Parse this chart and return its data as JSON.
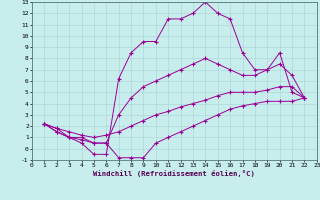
{
  "xlabel": "Windchill (Refroidissement éolien,°C)",
  "xlim": [
    0,
    23
  ],
  "ylim": [
    -1,
    13
  ],
  "xticks": [
    0,
    1,
    2,
    3,
    4,
    5,
    6,
    7,
    8,
    9,
    10,
    11,
    12,
    13,
    14,
    15,
    16,
    17,
    18,
    19,
    20,
    21,
    22,
    23
  ],
  "yticks": [
    -1,
    0,
    1,
    2,
    3,
    4,
    5,
    6,
    7,
    8,
    9,
    10,
    11,
    12,
    13
  ],
  "bg_color": "#c8eded",
  "line_color": "#990099",
  "grid_color": "#aadddd",
  "lines": [
    {
      "x": [
        1,
        2,
        3,
        4,
        5,
        6,
        7,
        8,
        9,
        10,
        11,
        12,
        13,
        14,
        15,
        16,
        17,
        18,
        19,
        20,
        21,
        22
      ],
      "y": [
        2.2,
        1.8,
        1.0,
        0.5,
        -0.5,
        -0.5,
        6.2,
        8.5,
        9.5,
        9.5,
        11.5,
        11.5,
        12.0,
        13.0,
        12.0,
        11.5,
        8.5,
        7.0,
        7.0,
        8.5,
        5.0,
        4.5
      ]
    },
    {
      "x": [
        1,
        2,
        3,
        4,
        5,
        6,
        7,
        8,
        9,
        10,
        11,
        12,
        13,
        14,
        15,
        16,
        17,
        18,
        19,
        20,
        21,
        22
      ],
      "y": [
        2.2,
        1.5,
        1.0,
        1.0,
        0.5,
        0.5,
        3.0,
        4.5,
        5.5,
        6.0,
        6.5,
        7.0,
        7.5,
        8.0,
        7.5,
        7.0,
        6.5,
        6.5,
        7.0,
        7.5,
        6.5,
        4.5
      ]
    },
    {
      "x": [
        1,
        2,
        3,
        4,
        5,
        6,
        7,
        8,
        9,
        10,
        11,
        12,
        13,
        14,
        15,
        16,
        17,
        18,
        19,
        20,
        21,
        22
      ],
      "y": [
        2.2,
        1.8,
        1.5,
        1.2,
        1.0,
        1.2,
        1.5,
        2.0,
        2.5,
        3.0,
        3.3,
        3.7,
        4.0,
        4.3,
        4.7,
        5.0,
        5.0,
        5.0,
        5.2,
        5.5,
        5.5,
        4.5
      ]
    },
    {
      "x": [
        1,
        2,
        3,
        4,
        5,
        6,
        7,
        8,
        9,
        10,
        11,
        12,
        13,
        14,
        15,
        16,
        17,
        18,
        19,
        20,
        21,
        22
      ],
      "y": [
        2.2,
        1.5,
        1.0,
        0.8,
        0.5,
        0.5,
        -0.8,
        -0.8,
        -0.8,
        0.5,
        1.0,
        1.5,
        2.0,
        2.5,
        3.0,
        3.5,
        3.8,
        4.0,
        4.2,
        4.2,
        4.2,
        4.5
      ]
    }
  ]
}
